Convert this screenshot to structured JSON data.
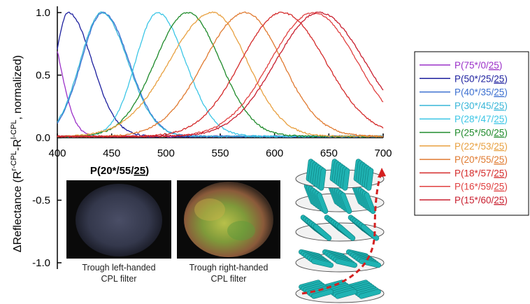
{
  "chart_data": {
    "type": "line",
    "title": "",
    "xlabel": "",
    "ylabel": "ΔReflectance (R^{r-CPL}-R^{l-CPL}, normalized)",
    "ylabel_parts": {
      "prefix": "ΔReflectance (R",
      "sup1": "r-CPL",
      "mid": "-R",
      "sup2": "l-CPL",
      "suffix": ", normalized)"
    },
    "xlim": [
      400,
      700
    ],
    "ylim": [
      -1.0,
      1.05
    ],
    "x_ticks": [
      400,
      450,
      500,
      550,
      600,
      650,
      700
    ],
    "y_ticks": [
      {
        "value": 1.0,
        "label": "1.0"
      },
      {
        "value": 0.5,
        "label": "0.5"
      },
      {
        "value": 0.0,
        "label": "0.0"
      },
      {
        "value": -0.5,
        "label": "-0.5"
      },
      {
        "value": -1.0,
        "label": "-1.0"
      }
    ],
    "grid": false,
    "legend_position": "right",
    "series": [
      {
        "name": "P(75*/0/25)",
        "base": "P(75*/0/",
        "tail": "25",
        "close": ")",
        "color": "#9b30c8",
        "peak": 388,
        "width_left": 10,
        "width_right": 14
      },
      {
        "name": "P(50*/25/25)",
        "base": "P(50*/25/",
        "tail": "25",
        "close": ")",
        "color": "#1c1f9e",
        "peak": 410,
        "width_left": 12,
        "width_right": 22
      },
      {
        "name": "P(40*/35/25)",
        "base": "P(40*/35/",
        "tail": "25",
        "close": ")",
        "color": "#3b6fd0",
        "peak": 442,
        "width_left": 20,
        "width_right": 24
      },
      {
        "name": "P(30*/45/25)",
        "base": "P(30*/45/",
        "tail": "25",
        "close": ")",
        "color": "#38b6d8",
        "peak": 441,
        "width_left": 20,
        "width_right": 24
      },
      {
        "name": "P(28*/47/25)",
        "base": "P(28*/47/",
        "tail": "25",
        "close": ")",
        "color": "#3cc6e6",
        "peak": 492,
        "width_left": 20,
        "width_right": 26
      },
      {
        "name": "P(25*/50/25)",
        "base": "P(25*/50/",
        "tail": "25",
        "close": ")",
        "color": "#1e8a2a",
        "peak": 520,
        "width_left": 30,
        "width_right": 30
      },
      {
        "name": "P(22*/53/25)",
        "base": "P(22*/53/",
        "tail": "25",
        "close": ")",
        "color": "#e8a040",
        "peak": 543,
        "width_left": 40,
        "width_right": 32
      },
      {
        "name": "P(20*/55/25)",
        "base": "P(20*/55/",
        "tail": "25",
        "close": ")",
        "color": "#e07a30",
        "peak": 573,
        "width_left": 38,
        "width_right": 34
      },
      {
        "name": "P(18*/57/25)",
        "base": "P(18*/57/",
        "tail": "25",
        "close": ")",
        "color": "#d42a2a",
        "peak": 607,
        "width_left": 38,
        "width_right": 40
      },
      {
        "name": "P(16*/59/25)",
        "base": "P(16*/59/",
        "tail": "25",
        "close": ")",
        "color": "#e04040",
        "peak": 636,
        "width_left": 40,
        "width_right": 40
      },
      {
        "name": "P(15*/60/25)",
        "base": "P(15*/60/",
        "tail": "25",
        "close": ")",
        "color": "#c81e2e",
        "peak": 641,
        "width_left": 40,
        "width_right": 42
      }
    ],
    "annotations": {
      "sample_title": "P(20*/55/25)",
      "sample_title_base": "P(20*/55/",
      "sample_title_tail": "25",
      "sample_title_close": ")",
      "photo_left_caption": [
        "Trough left-handed",
        "CPL filter"
      ],
      "photo_right_caption": [
        "Trough right-handed",
        "CPL filter"
      ]
    }
  },
  "colors": {
    "axis": "#000000",
    "photo_bg": "#0a0a0a",
    "rod": "#1fb3b3",
    "rod_dark": "#0e7d7d",
    "helix_arrow": "#d42020",
    "disk": "#f2f2f2",
    "disk_edge": "#555555"
  }
}
